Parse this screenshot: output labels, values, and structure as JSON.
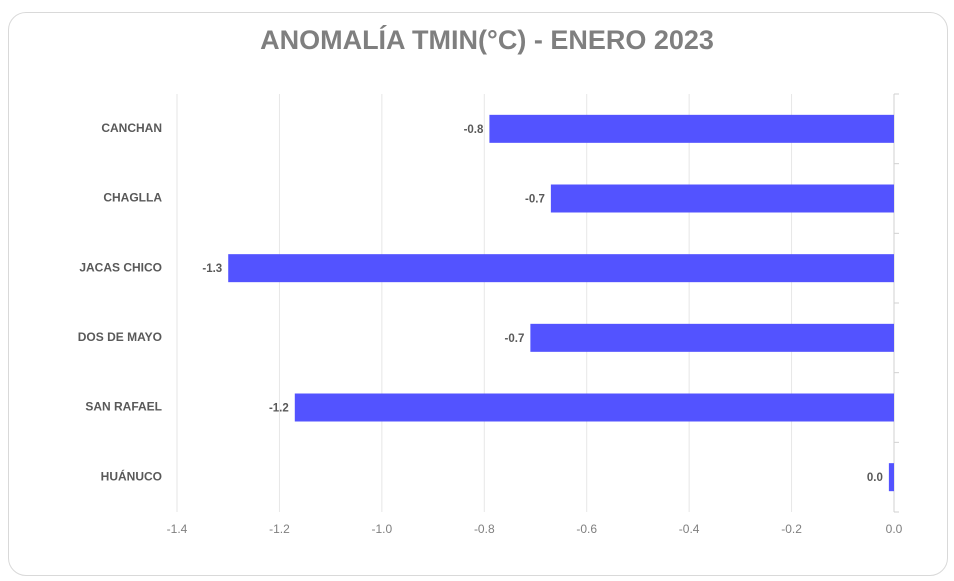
{
  "chart_data": {
    "type": "bar",
    "orientation": "horizontal",
    "title": "ANOMALÍA TMIN(°C) - ENERO 2023",
    "categories": [
      "CANCHAN",
      "CHAGLLA",
      "JACAS CHICO",
      "DOS DE MAYO",
      "SAN RAFAEL",
      "HUÁNUCO"
    ],
    "values": [
      -0.79,
      -0.67,
      -1.3,
      -0.71,
      -1.17,
      -0.01
    ],
    "value_labels": [
      "-0.8",
      "-0.7",
      "-1.3",
      "-0.7",
      "-1.2",
      "0.0"
    ],
    "color": "#5353ff",
    "xlim": [
      -1.4,
      0
    ],
    "xticks": [
      -1.4,
      -1.2,
      {
        "value": -1.0,
        "label": "-1.0"
      },
      -0.8,
      -0.6,
      -0.4,
      -0.2,
      {
        "value": 0,
        "label": "0.0"
      }
    ],
    "grid": true
  }
}
